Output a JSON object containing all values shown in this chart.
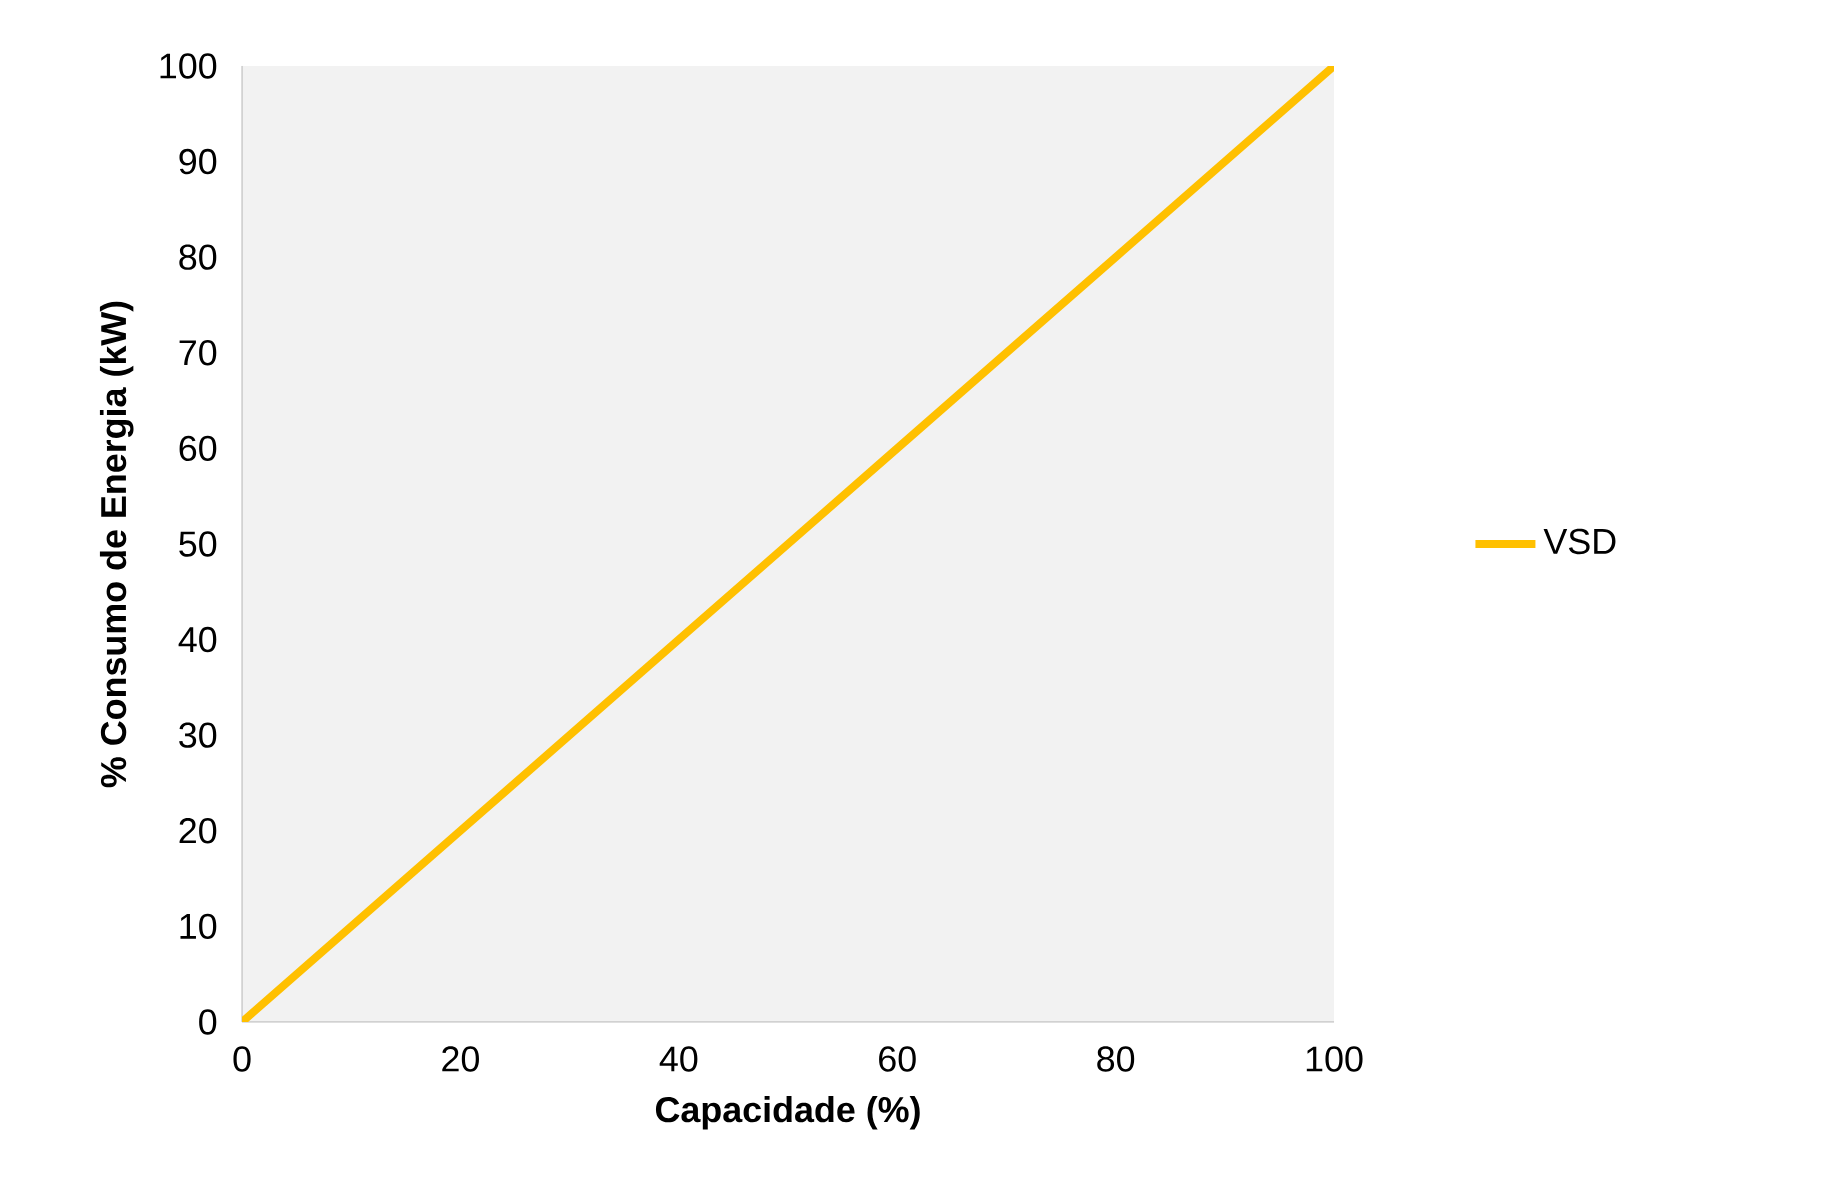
{
  "chart_data": {
    "type": "line",
    "xlabel": "Capacidade (%)",
    "ylabel": "% Consumo de Energia (kW)",
    "x": [
      0,
      20,
      40,
      60,
      80,
      100
    ],
    "series": [
      {
        "name": "VSD",
        "color": "#ffc000",
        "values": [
          0,
          20,
          40,
          60,
          80,
          100
        ]
      }
    ],
    "xlim": [
      0,
      100
    ],
    "ylim": [
      0,
      100
    ],
    "xticks": [
      0,
      20,
      40,
      60,
      80,
      100
    ],
    "yticks": [
      0,
      10,
      20,
      30,
      40,
      50,
      60,
      70,
      80,
      90,
      100
    ],
    "legend": "right",
    "grid": false,
    "marker": "none",
    "line_style": "solid"
  }
}
